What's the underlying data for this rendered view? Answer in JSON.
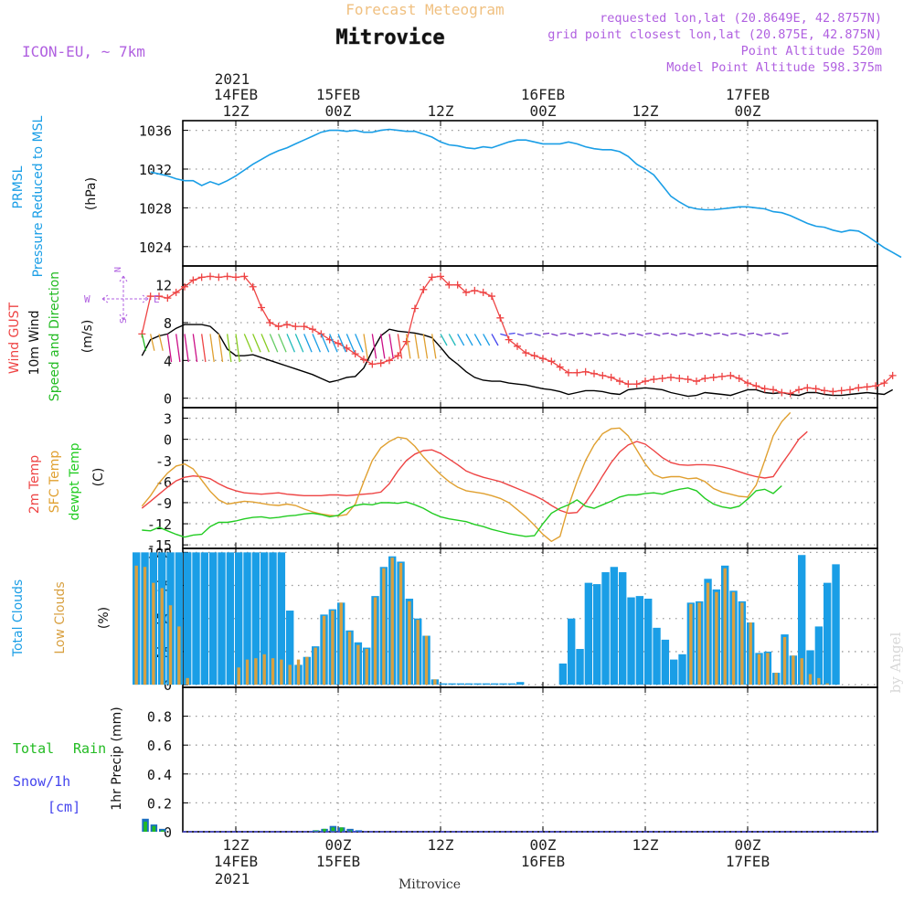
{
  "header": {
    "subtitle_top": "Forecast Meteogram",
    "location_title": "Mitrovice",
    "model": "ICON-EU, ~ 7km",
    "requested_point": "requested lon,lat (20.8649E, 42.8757N)",
    "grid_point": "grid point closest lon,lat (20.875E, 42.875N)",
    "point_altitude": "Point Altitude 520m",
    "model_altitude": "Model Point Altitude 598.375m",
    "footer_location": "Mitrovice",
    "credit": "by Angel"
  },
  "time_axis": {
    "top_year": "2021",
    "bottom_year": "2021",
    "labels": [
      {
        "hour": 12,
        "time": "12Z",
        "date": "14FEB"
      },
      {
        "hour": 24,
        "time": "00Z",
        "date": "15FEB"
      },
      {
        "hour": 36,
        "time": "12Z",
        "date": ""
      },
      {
        "hour": 48,
        "time": "00Z",
        "date": "16FEB"
      },
      {
        "hour": 60,
        "time": "12Z",
        "date": ""
      },
      {
        "hour": 72,
        "time": "00Z",
        "date": "17FEB"
      }
    ]
  },
  "colors": {
    "pressure": "#1a9ee6",
    "gust": "#ee4444",
    "wind": "#000000",
    "temp2m": "#ee4444",
    "sfc_temp": "#e0a030",
    "dewpoint": "#22cc22",
    "total_clouds": "#1a9ee6",
    "low_clouds": "#d8a040",
    "rain": "#22bb22",
    "snow": "#4444ee",
    "purple": "#b060e0",
    "orange_title": "#f0c080"
  },
  "chart_data": [
    {
      "type": "line",
      "panel": "pressure",
      "ylabel_colored": [
        "PRMSL",
        "Pressure Reduced to MSL"
      ],
      "unit": "(hPa)",
      "ylim": [
        1022,
        1037
      ],
      "yticks": [
        1024,
        1028,
        1032,
        1036
      ],
      "series": [
        {
          "values": [
            1031.7,
            1031.5,
            1031.3,
            1031.0,
            1030.8,
            1030.8,
            1030.3,
            1030.7,
            1030.4,
            1030.8,
            1031.3,
            1031.9,
            1032.5,
            1033.0,
            1033.5,
            1033.9,
            1034.2,
            1034.6,
            1035.0,
            1035.4,
            1035.8,
            1036.0,
            1036.0,
            1035.9,
            1036.0,
            1035.8,
            1035.8,
            1036.0,
            1036.1,
            1036.0,
            1035.9,
            1035.9,
            1035.6,
            1035.3,
            1034.8,
            1034.5,
            1034.4,
            1034.2,
            1034.1,
            1034.3,
            1034.2,
            1034.5,
            1034.8,
            1035.0,
            1035.0,
            1034.8,
            1034.6,
            1034.6,
            1034.6,
            1034.8,
            1034.6,
            1034.3,
            1034.1,
            1034.0,
            1034.0,
            1033.8,
            1033.3,
            1032.5,
            1032.0,
            1031.4,
            1030.3,
            1029.2,
            1028.6,
            1028.1,
            1027.9,
            1027.8,
            1027.8,
            1027.9,
            1028.0,
            1028.1,
            1028.1,
            1028.0,
            1027.9,
            1027.6,
            1027.5,
            1027.2,
            1026.8,
            1026.4,
            1026.1,
            1026.0,
            1025.7,
            1025.5,
            1025.7,
            1025.6,
            1025.1,
            1024.5,
            1023.9,
            1023.4,
            1022.9
          ]
        }
      ]
    },
    {
      "type": "line",
      "panel": "wind",
      "ylabel_colored": [
        "Wind GUST",
        "10m Wind",
        "Speed and Direction"
      ],
      "unit": "(m/s)",
      "compass": {
        "n": "N",
        "s": "S",
        "w": "W",
        "e": "E"
      },
      "ylim": [
        -1,
        14
      ],
      "yticks": [
        0,
        4,
        8,
        12
      ],
      "series": [
        {
          "name": "Wind GUST",
          "values": [
            6.8,
            10.8,
            10.8,
            10.6,
            11.2,
            11.8,
            12.5,
            12.8,
            12.9,
            12.8,
            12.9,
            12.8,
            12.9,
            11.8,
            9.6,
            8.0,
            7.6,
            7.8,
            7.6,
            7.6,
            7.3,
            6.8,
            6.2,
            5.8,
            5.3,
            4.7,
            4.1,
            3.6,
            3.7,
            4.0,
            4.5,
            6.0,
            9.5,
            11.5,
            12.8,
            12.9,
            12.0,
            12.0,
            11.2,
            11.4,
            11.2,
            10.8,
            8.5,
            6.2,
            5.5,
            4.8,
            4.5,
            4.2,
            3.9,
            3.3,
            2.7,
            2.7,
            2.8,
            2.6,
            2.4,
            2.2,
            1.8,
            1.5,
            1.5,
            1.8,
            2.0,
            2.1,
            2.2,
            2.1,
            2.0,
            1.8,
            2.1,
            2.2,
            2.3,
            2.4,
            2.1,
            1.6,
            1.3,
            1.0,
            0.9,
            0.6,
            0.5,
            0.9,
            1.1,
            1.0,
            0.8,
            0.7,
            0.8,
            0.9,
            1.1,
            1.2,
            1.3,
            1.6,
            2.4
          ]
        },
        {
          "name": "10m Wind",
          "values": [
            4.5,
            6.2,
            6.6,
            6.8,
            7.4,
            7.8,
            7.8,
            7.8,
            7.6,
            6.8,
            5.2,
            4.5,
            4.5,
            4.6,
            4.3,
            4.0,
            3.7,
            3.4,
            3.1,
            2.8,
            2.5,
            2.1,
            1.7,
            1.9,
            2.2,
            2.3,
            3.2,
            5.0,
            6.6,
            7.3,
            7.1,
            7.0,
            6.9,
            6.7,
            6.4,
            5.4,
            4.3,
            3.6,
            2.8,
            2.2,
            1.9,
            1.8,
            1.8,
            1.6,
            1.5,
            1.4,
            1.2,
            1.0,
            0.9,
            0.7,
            0.4,
            0.6,
            0.8,
            0.8,
            0.7,
            0.5,
            0.4,
            0.9,
            1.0,
            1.1,
            1.0,
            0.9,
            0.6,
            0.4,
            0.2,
            0.3,
            0.6,
            0.5,
            0.4,
            0.3,
            0.6,
            0.9,
            0.9,
            0.6,
            0.5,
            0.6,
            0.4,
            0.3,
            0.6,
            0.6,
            0.4,
            0.3,
            0.3,
            0.4,
            0.5,
            0.6,
            0.5,
            0.4,
            0.9
          ]
        }
      ]
    },
    {
      "type": "line",
      "panel": "temperature",
      "ylabel_colored": [
        "2m Temp",
        "SFC Temp",
        "dewpt Temp"
      ],
      "unit": "(C)",
      "ylim": [
        -15.5,
        4.5
      ],
      "yticks": [
        -15,
        -12,
        -9,
        -6,
        -3,
        0,
        3
      ],
      "series": [
        {
          "name": "2m Temp",
          "values": [
            -9.8,
            -8.8,
            -7.8,
            -6.8,
            -5.9,
            -5.4,
            -5.2,
            -5.3,
            -5.6,
            -6.3,
            -6.9,
            -7.3,
            -7.6,
            -7.7,
            -7.8,
            -7.7,
            -7.6,
            -7.8,
            -7.9,
            -8.0,
            -8.0,
            -8.0,
            -7.9,
            -7.9,
            -8.0,
            -7.9,
            -7.8,
            -7.7,
            -7.5,
            -6.3,
            -4.5,
            -3.0,
            -2.1,
            -1.6,
            -1.5,
            -2.0,
            -2.8,
            -3.6,
            -4.5,
            -5.0,
            -5.4,
            -5.7,
            -6.0,
            -6.5,
            -7.0,
            -7.5,
            -8.0,
            -8.6,
            -9.4,
            -10.1,
            -10.5,
            -10.4,
            -9.0,
            -7.2,
            -5.2,
            -3.3,
            -1.8,
            -0.8,
            -0.3,
            -0.7,
            -1.6,
            -2.6,
            -3.3,
            -3.6,
            -3.7,
            -3.6,
            -3.6,
            -3.7,
            -3.9,
            -4.2,
            -4.6,
            -5.0,
            -5.3,
            -5.5,
            -5.3,
            -3.5,
            -1.8,
            0.0,
            1.1
          ]
        },
        {
          "name": "SFC Temp",
          "values": [
            -9.5,
            -8.0,
            -6.2,
            -4.8,
            -3.8,
            -3.5,
            -4.2,
            -5.8,
            -7.4,
            -8.6,
            -9.2,
            -9.0,
            -8.8,
            -8.9,
            -9.1,
            -9.3,
            -9.4,
            -9.2,
            -9.4,
            -9.9,
            -10.3,
            -10.6,
            -10.8,
            -10.9,
            -10.7,
            -9.2,
            -6.0,
            -3.0,
            -1.2,
            -0.3,
            0.3,
            0.1,
            -1.0,
            -2.5,
            -3.8,
            -5.0,
            -6.0,
            -6.8,
            -7.3,
            -7.5,
            -7.7,
            -8.0,
            -8.4,
            -9.0,
            -10.0,
            -11.0,
            -12.2,
            -13.5,
            -14.5,
            -13.8,
            -9.5,
            -6.0,
            -3.0,
            -0.8,
            0.8,
            1.5,
            1.6,
            0.5,
            -1.5,
            -3.5,
            -5.0,
            -5.5,
            -5.3,
            -5.3,
            -5.6,
            -5.5,
            -6.0,
            -7.0,
            -7.5,
            -7.8,
            -8.1,
            -8.2,
            -6.5,
            -3.0,
            0.5,
            2.5,
            3.8
          ]
        },
        {
          "name": "dewpt Temp",
          "values": [
            -12.9,
            -13.0,
            -12.5,
            -13.0,
            -13.5,
            -13.9,
            -13.6,
            -13.5,
            -12.4,
            -11.8,
            -11.8,
            -11.6,
            -11.3,
            -11.1,
            -11.0,
            -11.2,
            -11.1,
            -10.9,
            -10.8,
            -10.6,
            -10.5,
            -10.7,
            -11.0,
            -10.8,
            -9.9,
            -9.4,
            -9.2,
            -9.3,
            -9.0,
            -9.0,
            -9.1,
            -8.9,
            -9.3,
            -9.8,
            -10.5,
            -11.0,
            -11.3,
            -11.5,
            -11.7,
            -12.1,
            -12.4,
            -12.8,
            -13.1,
            -13.4,
            -13.6,
            -13.8,
            -13.7,
            -12.0,
            -10.5,
            -9.8,
            -9.3,
            -8.6,
            -9.5,
            -9.8,
            -9.3,
            -8.8,
            -8.2,
            -7.9,
            -7.9,
            -7.7,
            -7.6,
            -7.8,
            -7.4,
            -7.1,
            -6.9,
            -7.3,
            -8.4,
            -9.2,
            -9.6,
            -9.8,
            -9.5,
            -8.5,
            -7.3,
            -7.1,
            -7.7,
            -6.6
          ]
        }
      ]
    },
    {
      "type": "bar",
      "panel": "clouds",
      "ylabel_colored": [
        "Total Clouds",
        "Low Clouds"
      ],
      "unit": "(%)",
      "ylim": [
        -2,
        103
      ],
      "yticks": [
        0,
        25,
        50,
        75,
        100
      ],
      "series": [
        {
          "name": "Total Clouds",
          "values": [
            100,
            100,
            100,
            100,
            100,
            100,
            100,
            100,
            100,
            100,
            100,
            100,
            100,
            100,
            100,
            100,
            100,
            100,
            56,
            15,
            21,
            29,
            53,
            57,
            62,
            41,
            32,
            28,
            67,
            89,
            97,
            93,
            65,
            50,
            37,
            4,
            1,
            1,
            1,
            1,
            1,
            1,
            1,
            1,
            1,
            2,
            0,
            0,
            0,
            0,
            16,
            50,
            27,
            77,
            76,
            85,
            89,
            85,
            66,
            67,
            65,
            43,
            34,
            19,
            23,
            62,
            63,
            80,
            72,
            90,
            71,
            63,
            47,
            24,
            25,
            9,
            38,
            22,
            98,
            26,
            44,
            77,
            91
          ]
        },
        {
          "name": "Low Clouds",
          "values": [
            90,
            89,
            77,
            73,
            60,
            44,
            5,
            0,
            0,
            0,
            0,
            0,
            13,
            19,
            20,
            23,
            20,
            19,
            15,
            19,
            21,
            28,
            52,
            56,
            62,
            40,
            30,
            27,
            66,
            88,
            96,
            92,
            63,
            49,
            37,
            4,
            0,
            0,
            0,
            0,
            0,
            0,
            0,
            0,
            0,
            0,
            0,
            0,
            0,
            0,
            0,
            0,
            0,
            0,
            0,
            0,
            0,
            0,
            0,
            0,
            0,
            0,
            0,
            0,
            0,
            61,
            62,
            77,
            70,
            88,
            70,
            62,
            47,
            23,
            24,
            9,
            36,
            22,
            20,
            8,
            5,
            1,
            0
          ]
        }
      ]
    },
    {
      "type": "bar",
      "panel": "precipitation",
      "ylabel_colored": [
        "Total",
        "Rain",
        "Snow/1h",
        "[cm]"
      ],
      "unit": "1hr Precip (mm)",
      "ylim": [
        0,
        1.0
      ],
      "yticks": [
        0,
        0.2,
        0.4,
        0.6,
        0.8
      ],
      "series": [
        {
          "name": "Total",
          "values": [
            0,
            0.09,
            0.05,
            0.02,
            0,
            0,
            0,
            0,
            0,
            0,
            0,
            0,
            0,
            0,
            0,
            0,
            0,
            0,
            0,
            0,
            0,
            0.01,
            0.02,
            0.04,
            0.03,
            0.02,
            0.01,
            0,
            0,
            0,
            0,
            0,
            0,
            0,
            0,
            0,
            0,
            0,
            0,
            0,
            0,
            0,
            0,
            0,
            0,
            0,
            0,
            0,
            0,
            0,
            0,
            0,
            0,
            0,
            0,
            0,
            0,
            0,
            0,
            0,
            0,
            0,
            0,
            0,
            0,
            0,
            0,
            0,
            0,
            0,
            0,
            0,
            0,
            0,
            0,
            0,
            0,
            0,
            0,
            0,
            0,
            0,
            0
          ]
        },
        {
          "name": "Rain",
          "values": [
            0,
            0.07,
            0.04,
            0.01,
            0,
            0,
            0,
            0,
            0,
            0,
            0,
            0,
            0,
            0,
            0,
            0,
            0,
            0,
            0,
            0,
            0,
            0.01,
            0.02,
            0.03,
            0.03,
            0.01,
            0,
            0,
            0,
            0,
            0,
            0,
            0,
            0,
            0,
            0,
            0,
            0,
            0,
            0,
            0,
            0,
            0,
            0,
            0,
            0,
            0,
            0,
            0,
            0,
            0,
            0,
            0,
            0,
            0,
            0,
            0,
            0,
            0,
            0,
            0,
            0,
            0,
            0,
            0,
            0,
            0,
            0,
            0,
            0,
            0,
            0,
            0,
            0,
            0,
            0,
            0,
            0,
            0,
            0,
            0,
            0,
            0
          ]
        }
      ]
    }
  ]
}
